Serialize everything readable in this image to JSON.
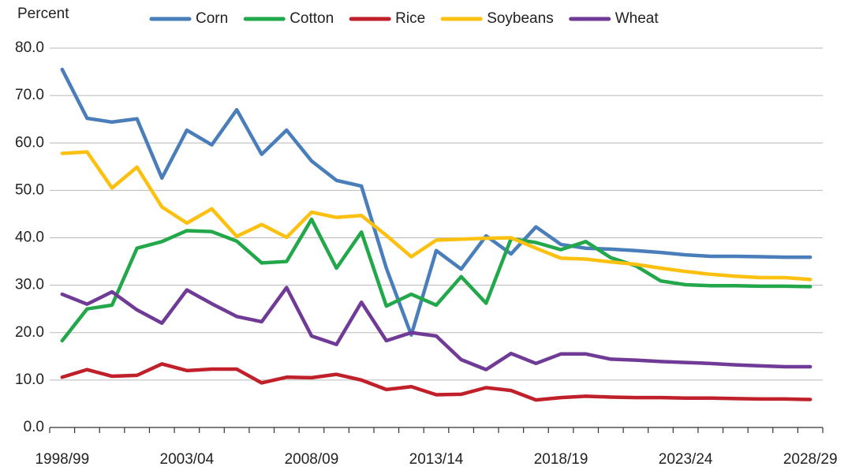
{
  "chart_data": {
    "type": "line",
    "y_label": "Percent",
    "categories": [
      "1998/99",
      null,
      null,
      null,
      null,
      "2003/04",
      null,
      null,
      null,
      null,
      "2008/09",
      null,
      null,
      null,
      null,
      "2013/14",
      null,
      null,
      null,
      null,
      "2018/19",
      null,
      null,
      null,
      null,
      "2023/24",
      null,
      null,
      null,
      null,
      "2028/29"
    ],
    "series": [
      {
        "name": "Corn",
        "color": "#4a7ebb",
        "values": [
          75.5,
          65.2,
          64.4,
          65.1,
          52.6,
          62.7,
          59.6,
          67.0,
          57.6,
          62.7,
          56.2,
          52.1,
          50.9,
          33.6,
          19.5,
          37.3,
          33.4,
          40.4,
          36.6,
          42.3,
          38.6,
          37.8,
          37.6,
          37.3,
          36.9,
          36.4,
          36.1,
          36.1,
          36.0,
          35.9,
          35.9
        ]
      },
      {
        "name": "Cotton",
        "color": "#22a84a",
        "values": [
          18.3,
          25.0,
          25.8,
          37.8,
          39.2,
          41.5,
          41.3,
          39.3,
          34.7,
          35.0,
          43.9,
          33.6,
          41.2,
          25.6,
          28.1,
          25.8,
          31.8,
          26.2,
          39.8,
          39.0,
          37.5,
          39.2,
          35.8,
          34.1,
          30.9,
          30.1,
          29.9,
          29.9,
          29.8,
          29.8,
          29.7
        ]
      },
      {
        "name": "Rice",
        "color": "#c0202a",
        "values": [
          10.6,
          12.2,
          10.8,
          11.0,
          13.4,
          12.0,
          12.3,
          12.3,
          9.4,
          10.6,
          10.5,
          11.2,
          10.0,
          8.0,
          8.6,
          6.9,
          7.0,
          8.4,
          7.8,
          5.8,
          6.3,
          6.6,
          6.4,
          6.3,
          6.3,
          6.2,
          6.2,
          6.1,
          6.0,
          6.0,
          5.9
        ]
      },
      {
        "name": "Soybeans",
        "color": "#fcc010",
        "values": [
          57.8,
          58.1,
          50.5,
          54.9,
          46.5,
          43.1,
          46.1,
          40.3,
          42.8,
          40.1,
          45.4,
          44.3,
          44.7,
          40.5,
          36.0,
          39.5,
          39.7,
          39.9,
          40.0,
          37.8,
          35.7,
          35.5,
          34.9,
          34.4,
          33.6,
          32.9,
          32.3,
          31.9,
          31.6,
          31.6,
          31.2
        ]
      },
      {
        "name": "Wheat",
        "color": "#6f3b96",
        "values": [
          28.1,
          26.0,
          28.6,
          24.8,
          22.0,
          29.0,
          26.1,
          23.4,
          22.3,
          29.5,
          19.3,
          17.5,
          26.4,
          18.3,
          20.0,
          19.3,
          14.3,
          12.2,
          15.6,
          13.5,
          15.5,
          15.5,
          14.4,
          14.2,
          13.9,
          13.7,
          13.5,
          13.2,
          13.0,
          12.8,
          12.8
        ]
      }
    ],
    "ylim": [
      0,
      80
    ],
    "yticks": [
      {
        "value": 0,
        "label": "0.0"
      },
      {
        "value": 10,
        "label": "10.0"
      },
      {
        "value": 20,
        "label": "20.0"
      },
      {
        "value": 30,
        "label": "30.0"
      },
      {
        "value": 40,
        "label": "40.0"
      },
      {
        "value": 50,
        "label": "50.0"
      },
      {
        "value": 60,
        "label": "60.0"
      },
      {
        "value": 70,
        "label": "70.0"
      },
      {
        "value": 80,
        "label": "80.0"
      }
    ],
    "grid": true,
    "legend": "top"
  }
}
